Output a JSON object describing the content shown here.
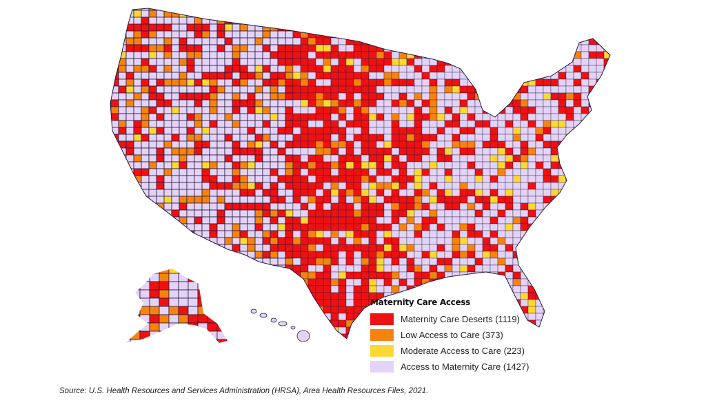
{
  "legend": {
    "title": "Maternity Care Access",
    "items": [
      {
        "label": "Maternity Care Deserts (1119)",
        "color": "#ee1111"
      },
      {
        "label": "Low Access to Care (373)",
        "color": "#f7830f"
      },
      {
        "label": "Moderate Access to Care (223)",
        "color": "#fdd835"
      },
      {
        "label": "Access to Maternity Care (1427)",
        "color": "#e3d3f7"
      }
    ]
  },
  "source": "Source: U.S. Health Resources and Services Administration (HRSA), Area Health Resources Files, 2021.",
  "border_color": "#2a1a3a"
}
